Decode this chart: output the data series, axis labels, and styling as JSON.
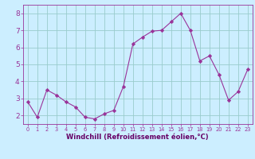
{
  "x": [
    0,
    1,
    2,
    3,
    4,
    5,
    6,
    7,
    8,
    9,
    10,
    11,
    12,
    13,
    14,
    15,
    16,
    17,
    18,
    19,
    20,
    21,
    22,
    23
  ],
  "y": [
    2.8,
    1.9,
    3.5,
    3.2,
    2.8,
    2.5,
    1.9,
    1.8,
    2.1,
    2.3,
    3.7,
    6.2,
    6.6,
    6.95,
    7.0,
    7.5,
    8.0,
    7.0,
    5.2,
    5.5,
    4.4,
    2.9,
    3.4,
    4.7
  ],
  "line_color": "#993399",
  "marker": "D",
  "marker_size": 2.2,
  "bg_color": "#cceeff",
  "grid_color": "#99cccc",
  "xlabel": "Windchill (Refroidissement éolien,°C)",
  "xlabel_color": "#660066",
  "tick_color": "#993399",
  "xlim": [
    -0.5,
    23.5
  ],
  "ylim": [
    1.5,
    8.5
  ],
  "yticks": [
    2,
    3,
    4,
    5,
    6,
    7,
    8
  ],
  "xticks": [
    0,
    1,
    2,
    3,
    4,
    5,
    6,
    7,
    8,
    9,
    10,
    11,
    12,
    13,
    14,
    15,
    16,
    17,
    18,
    19,
    20,
    21,
    22,
    23
  ]
}
